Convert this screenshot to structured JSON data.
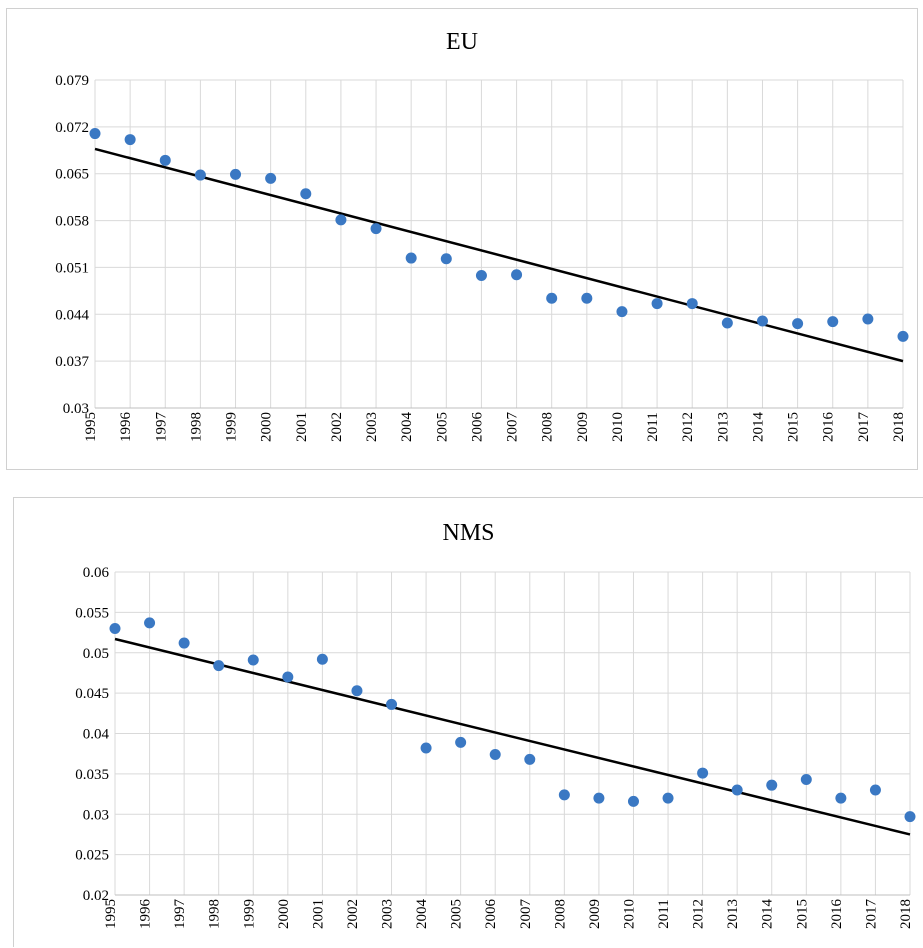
{
  "chart_data": [
    {
      "type": "scatter",
      "title": "EU",
      "xlabel": "",
      "ylabel": "",
      "categories": [
        "1995",
        "1996",
        "1997",
        "1998",
        "1999",
        "2000",
        "2001",
        "2002",
        "2003",
        "2004",
        "2005",
        "2006",
        "2007",
        "2008",
        "2009",
        "2010",
        "2011",
        "2012",
        "2013",
        "2014",
        "2015",
        "2016",
        "2017",
        "2018"
      ],
      "ylim": [
        0.03,
        0.079
      ],
      "yticks": [
        "0.03",
        "0.037",
        "0.044",
        "0.051",
        "0.058",
        "0.065",
        "0.072",
        "0.079"
      ],
      "series": [
        {
          "values": [
            0.071,
            0.0701,
            0.067,
            0.0648,
            0.0649,
            0.0643,
            0.062,
            0.0581,
            0.0568,
            0.0524,
            0.0523,
            0.0498,
            0.0499,
            0.0464,
            0.0464,
            0.0444,
            0.0456,
            0.0456,
            0.0427,
            0.043,
            0.0426,
            0.0429,
            0.0433,
            0.0407
          ]
        }
      ],
      "trendline": {
        "type": "linear",
        "start": 0.0687,
        "end": 0.037
      },
      "grid": true,
      "colors": {
        "marker": "#3a78c3",
        "trendline": "#000000",
        "grid": "#d9d9d9"
      }
    },
    {
      "type": "scatter",
      "title": "NMS",
      "xlabel": "",
      "ylabel": "",
      "categories": [
        "1995",
        "1996",
        "1997",
        "1998",
        "1999",
        "2000",
        "2001",
        "2002",
        "2003",
        "2004",
        "2005",
        "2006",
        "2007",
        "2008",
        "2009",
        "2010",
        "2011",
        "2012",
        "2013",
        "2014",
        "2015",
        "2016",
        "2017",
        "2018"
      ],
      "ylim": [
        0.02,
        0.06
      ],
      "yticks": [
        "0.02",
        "0.025",
        "0.03",
        "0.035",
        "0.04",
        "0.045",
        "0.05",
        "0.055",
        "0.06"
      ],
      "series": [
        {
          "values": [
            0.053,
            0.0537,
            0.0512,
            0.0484,
            0.0491,
            0.047,
            0.0492,
            0.0453,
            0.0436,
            0.0382,
            0.0389,
            0.0374,
            0.0368,
            0.0324,
            0.032,
            0.0316,
            0.032,
            0.0351,
            0.033,
            0.0336,
            0.0343,
            0.032,
            0.033,
            0.0297
          ]
        }
      ],
      "trendline": {
        "type": "linear",
        "start": 0.0517,
        "end": 0.0275
      },
      "grid": true,
      "colors": {
        "marker": "#3a78c3",
        "trendline": "#000000",
        "grid": "#d9d9d9"
      }
    }
  ]
}
